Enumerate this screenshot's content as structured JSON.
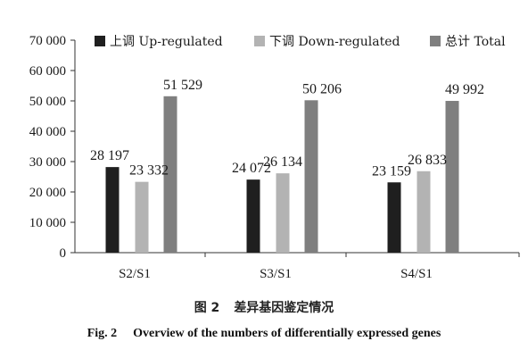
{
  "chart_data": {
    "type": "bar",
    "categories": [
      "S2/S1",
      "S3/S1",
      "S4/S1"
    ],
    "series": [
      {
        "name": "上调 Up-regulated",
        "values": [
          28197,
          24072,
          23159
        ],
        "color": "#1f1f1f"
      },
      {
        "name": "下调 Down-regulated",
        "values": [
          23332,
          26134,
          26833
        ],
        "color": "#b3b3b3"
      },
      {
        "name": "总计 Total",
        "values": [
          51529,
          50206,
          49992
        ],
        "color": "#7f7f7f"
      }
    ],
    "value_labels": [
      [
        "28 197",
        "23 332",
        "51 529"
      ],
      [
        "24 072",
        "26 134",
        "50 206"
      ],
      [
        "23 159",
        "26 833",
        "49 992"
      ]
    ],
    "y_ticks": [
      0,
      10000,
      20000,
      30000,
      40000,
      50000,
      60000,
      70000
    ],
    "y_tick_labels": [
      "0",
      "10 000",
      "20 000",
      "30 000",
      "40 000",
      "50 000",
      "60 000",
      "70 000"
    ],
    "ylim": [
      0,
      70000
    ],
    "grid": false,
    "legend_position": "top"
  },
  "caption": {
    "cn_fig": "图 2",
    "cn_title": "差异基因鉴定情况",
    "en_fig": "Fig. 2",
    "en_title": "Overview of the numbers of differentially expressed genes"
  }
}
